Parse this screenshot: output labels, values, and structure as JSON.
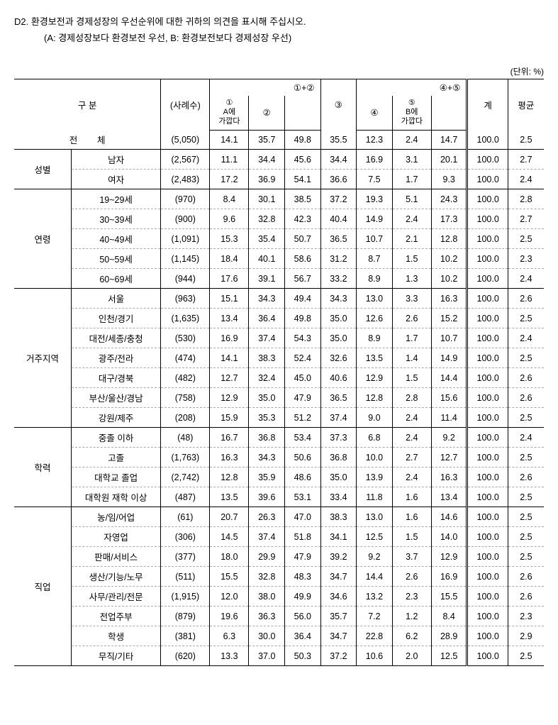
{
  "question_id": "D2.",
  "question_text": "환경보전과 경제성장의 우선순위에 대한 귀하의 의견을 표시해 주십시오.",
  "question_sub": "(A: 경제성장보다 환경보전 우선, B: 환경보전보다 경제성장 우선)",
  "unit": "(단위: %)",
  "headers": {
    "category": "구        분",
    "n": "(사례수)",
    "g12": "①+②",
    "c1_top": "①",
    "c1_bot": "A에\n가깝다",
    "c2": "②",
    "c3": "③",
    "g45": "④+⑤",
    "c4": "④",
    "c5_top": "⑤",
    "c5_bot": "B에\n가깝다",
    "total": "계",
    "avg": "평균"
  },
  "groups": [
    {
      "label": "전        체",
      "fullspan": true,
      "rows": [
        {
          "label": "",
          "n": "(5,050)",
          "v": [
            "14.1",
            "35.7",
            "49.8",
            "35.5",
            "12.3",
            "2.4",
            "14.7",
            "100.0",
            "2.5"
          ]
        }
      ]
    },
    {
      "label": "성별",
      "rows": [
        {
          "label": "남자",
          "n": "(2,567)",
          "v": [
            "11.1",
            "34.4",
            "45.6",
            "34.4",
            "16.9",
            "3.1",
            "20.1",
            "100.0",
            "2.7"
          ]
        },
        {
          "label": "여자",
          "n": "(2,483)",
          "v": [
            "17.2",
            "36.9",
            "54.1",
            "36.6",
            "7.5",
            "1.7",
            "9.3",
            "100.0",
            "2.4"
          ]
        }
      ]
    },
    {
      "label": "연령",
      "rows": [
        {
          "label": "19~29세",
          "n": "(970)",
          "v": [
            "8.4",
            "30.1",
            "38.5",
            "37.2",
            "19.3",
            "5.1",
            "24.3",
            "100.0",
            "2.8"
          ]
        },
        {
          "label": "30~39세",
          "n": "(900)",
          "v": [
            "9.6",
            "32.8",
            "42.3",
            "40.4",
            "14.9",
            "2.4",
            "17.3",
            "100.0",
            "2.7"
          ]
        },
        {
          "label": "40~49세",
          "n": "(1,091)",
          "v": [
            "15.3",
            "35.4",
            "50.7",
            "36.5",
            "10.7",
            "2.1",
            "12.8",
            "100.0",
            "2.5"
          ]
        },
        {
          "label": "50~59세",
          "n": "(1,145)",
          "v": [
            "18.4",
            "40.1",
            "58.6",
            "31.2",
            "8.7",
            "1.5",
            "10.2",
            "100.0",
            "2.3"
          ]
        },
        {
          "label": "60~69세",
          "n": "(944)",
          "v": [
            "17.6",
            "39.1",
            "56.7",
            "33.2",
            "8.9",
            "1.3",
            "10.2",
            "100.0",
            "2.4"
          ]
        }
      ]
    },
    {
      "label": "거주지역",
      "rows": [
        {
          "label": "서울",
          "n": "(963)",
          "v": [
            "15.1",
            "34.3",
            "49.4",
            "34.3",
            "13.0",
            "3.3",
            "16.3",
            "100.0",
            "2.6"
          ]
        },
        {
          "label": "인천/경기",
          "n": "(1,635)",
          "v": [
            "13.4",
            "36.4",
            "49.8",
            "35.0",
            "12.6",
            "2.6",
            "15.2",
            "100.0",
            "2.5"
          ]
        },
        {
          "label": "대전/세종/충청",
          "n": "(530)",
          "v": [
            "16.9",
            "37.4",
            "54.3",
            "35.0",
            "8.9",
            "1.7",
            "10.7",
            "100.0",
            "2.4"
          ]
        },
        {
          "label": "광주/전라",
          "n": "(474)",
          "v": [
            "14.1",
            "38.3",
            "52.4",
            "32.6",
            "13.5",
            "1.4",
            "14.9",
            "100.0",
            "2.5"
          ]
        },
        {
          "label": "대구/경북",
          "n": "(482)",
          "v": [
            "12.7",
            "32.4",
            "45.0",
            "40.6",
            "12.9",
            "1.5",
            "14.4",
            "100.0",
            "2.6"
          ]
        },
        {
          "label": "부산/울산/경남",
          "n": "(758)",
          "v": [
            "12.9",
            "35.0",
            "47.9",
            "36.5",
            "12.8",
            "2.8",
            "15.6",
            "100.0",
            "2.6"
          ]
        },
        {
          "label": "강원/제주",
          "n": "(208)",
          "v": [
            "15.9",
            "35.3",
            "51.2",
            "37.4",
            "9.0",
            "2.4",
            "11.4",
            "100.0",
            "2.5"
          ]
        }
      ]
    },
    {
      "label": "학력",
      "rows": [
        {
          "label": "중졸 이하",
          "n": "(48)",
          "v": [
            "16.7",
            "36.8",
            "53.4",
            "37.3",
            "6.8",
            "2.4",
            "9.2",
            "100.0",
            "2.4"
          ]
        },
        {
          "label": "고졸",
          "n": "(1,763)",
          "v": [
            "16.3",
            "34.3",
            "50.6",
            "36.8",
            "10.0",
            "2.7",
            "12.7",
            "100.0",
            "2.5"
          ]
        },
        {
          "label": "대학교 졸업",
          "n": "(2,742)",
          "v": [
            "12.8",
            "35.9",
            "48.6",
            "35.0",
            "13.9",
            "2.4",
            "16.3",
            "100.0",
            "2.6"
          ]
        },
        {
          "label": "대학원 재학 이상",
          "n": "(487)",
          "v": [
            "13.5",
            "39.6",
            "53.1",
            "33.4",
            "11.8",
            "1.6",
            "13.4",
            "100.0",
            "2.5"
          ]
        }
      ]
    },
    {
      "label": "직업",
      "rows": [
        {
          "label": "농/임/어업",
          "n": "(61)",
          "v": [
            "20.7",
            "26.3",
            "47.0",
            "38.3",
            "13.0",
            "1.6",
            "14.6",
            "100.0",
            "2.5"
          ]
        },
        {
          "label": "자영업",
          "n": "(306)",
          "v": [
            "14.5",
            "37.4",
            "51.8",
            "34.1",
            "12.5",
            "1.5",
            "14.0",
            "100.0",
            "2.5"
          ]
        },
        {
          "label": "판매/서비스",
          "n": "(377)",
          "v": [
            "18.0",
            "29.9",
            "47.9",
            "39.2",
            "9.2",
            "3.7",
            "12.9",
            "100.0",
            "2.5"
          ]
        },
        {
          "label": "생산/기능/노무",
          "n": "(511)",
          "v": [
            "15.5",
            "32.8",
            "48.3",
            "34.7",
            "14.4",
            "2.6",
            "16.9",
            "100.0",
            "2.6"
          ]
        },
        {
          "label": "사무/관리/전문",
          "n": "(1,915)",
          "v": [
            "12.0",
            "38.0",
            "49.9",
            "34.6",
            "13.2",
            "2.3",
            "15.5",
            "100.0",
            "2.6"
          ]
        },
        {
          "label": "전업주부",
          "n": "(879)",
          "v": [
            "19.6",
            "36.3",
            "56.0",
            "35.7",
            "7.2",
            "1.2",
            "8.4",
            "100.0",
            "2.3"
          ]
        },
        {
          "label": "학생",
          "n": "(381)",
          "v": [
            "6.3",
            "30.0",
            "36.4",
            "34.7",
            "22.8",
            "6.2",
            "28.9",
            "100.0",
            "2.9"
          ]
        },
        {
          "label": "무직/기타",
          "n": "(620)",
          "v": [
            "13.3",
            "37.0",
            "50.3",
            "37.2",
            "10.6",
            "2.0",
            "12.5",
            "100.0",
            "2.5"
          ]
        }
      ]
    }
  ]
}
